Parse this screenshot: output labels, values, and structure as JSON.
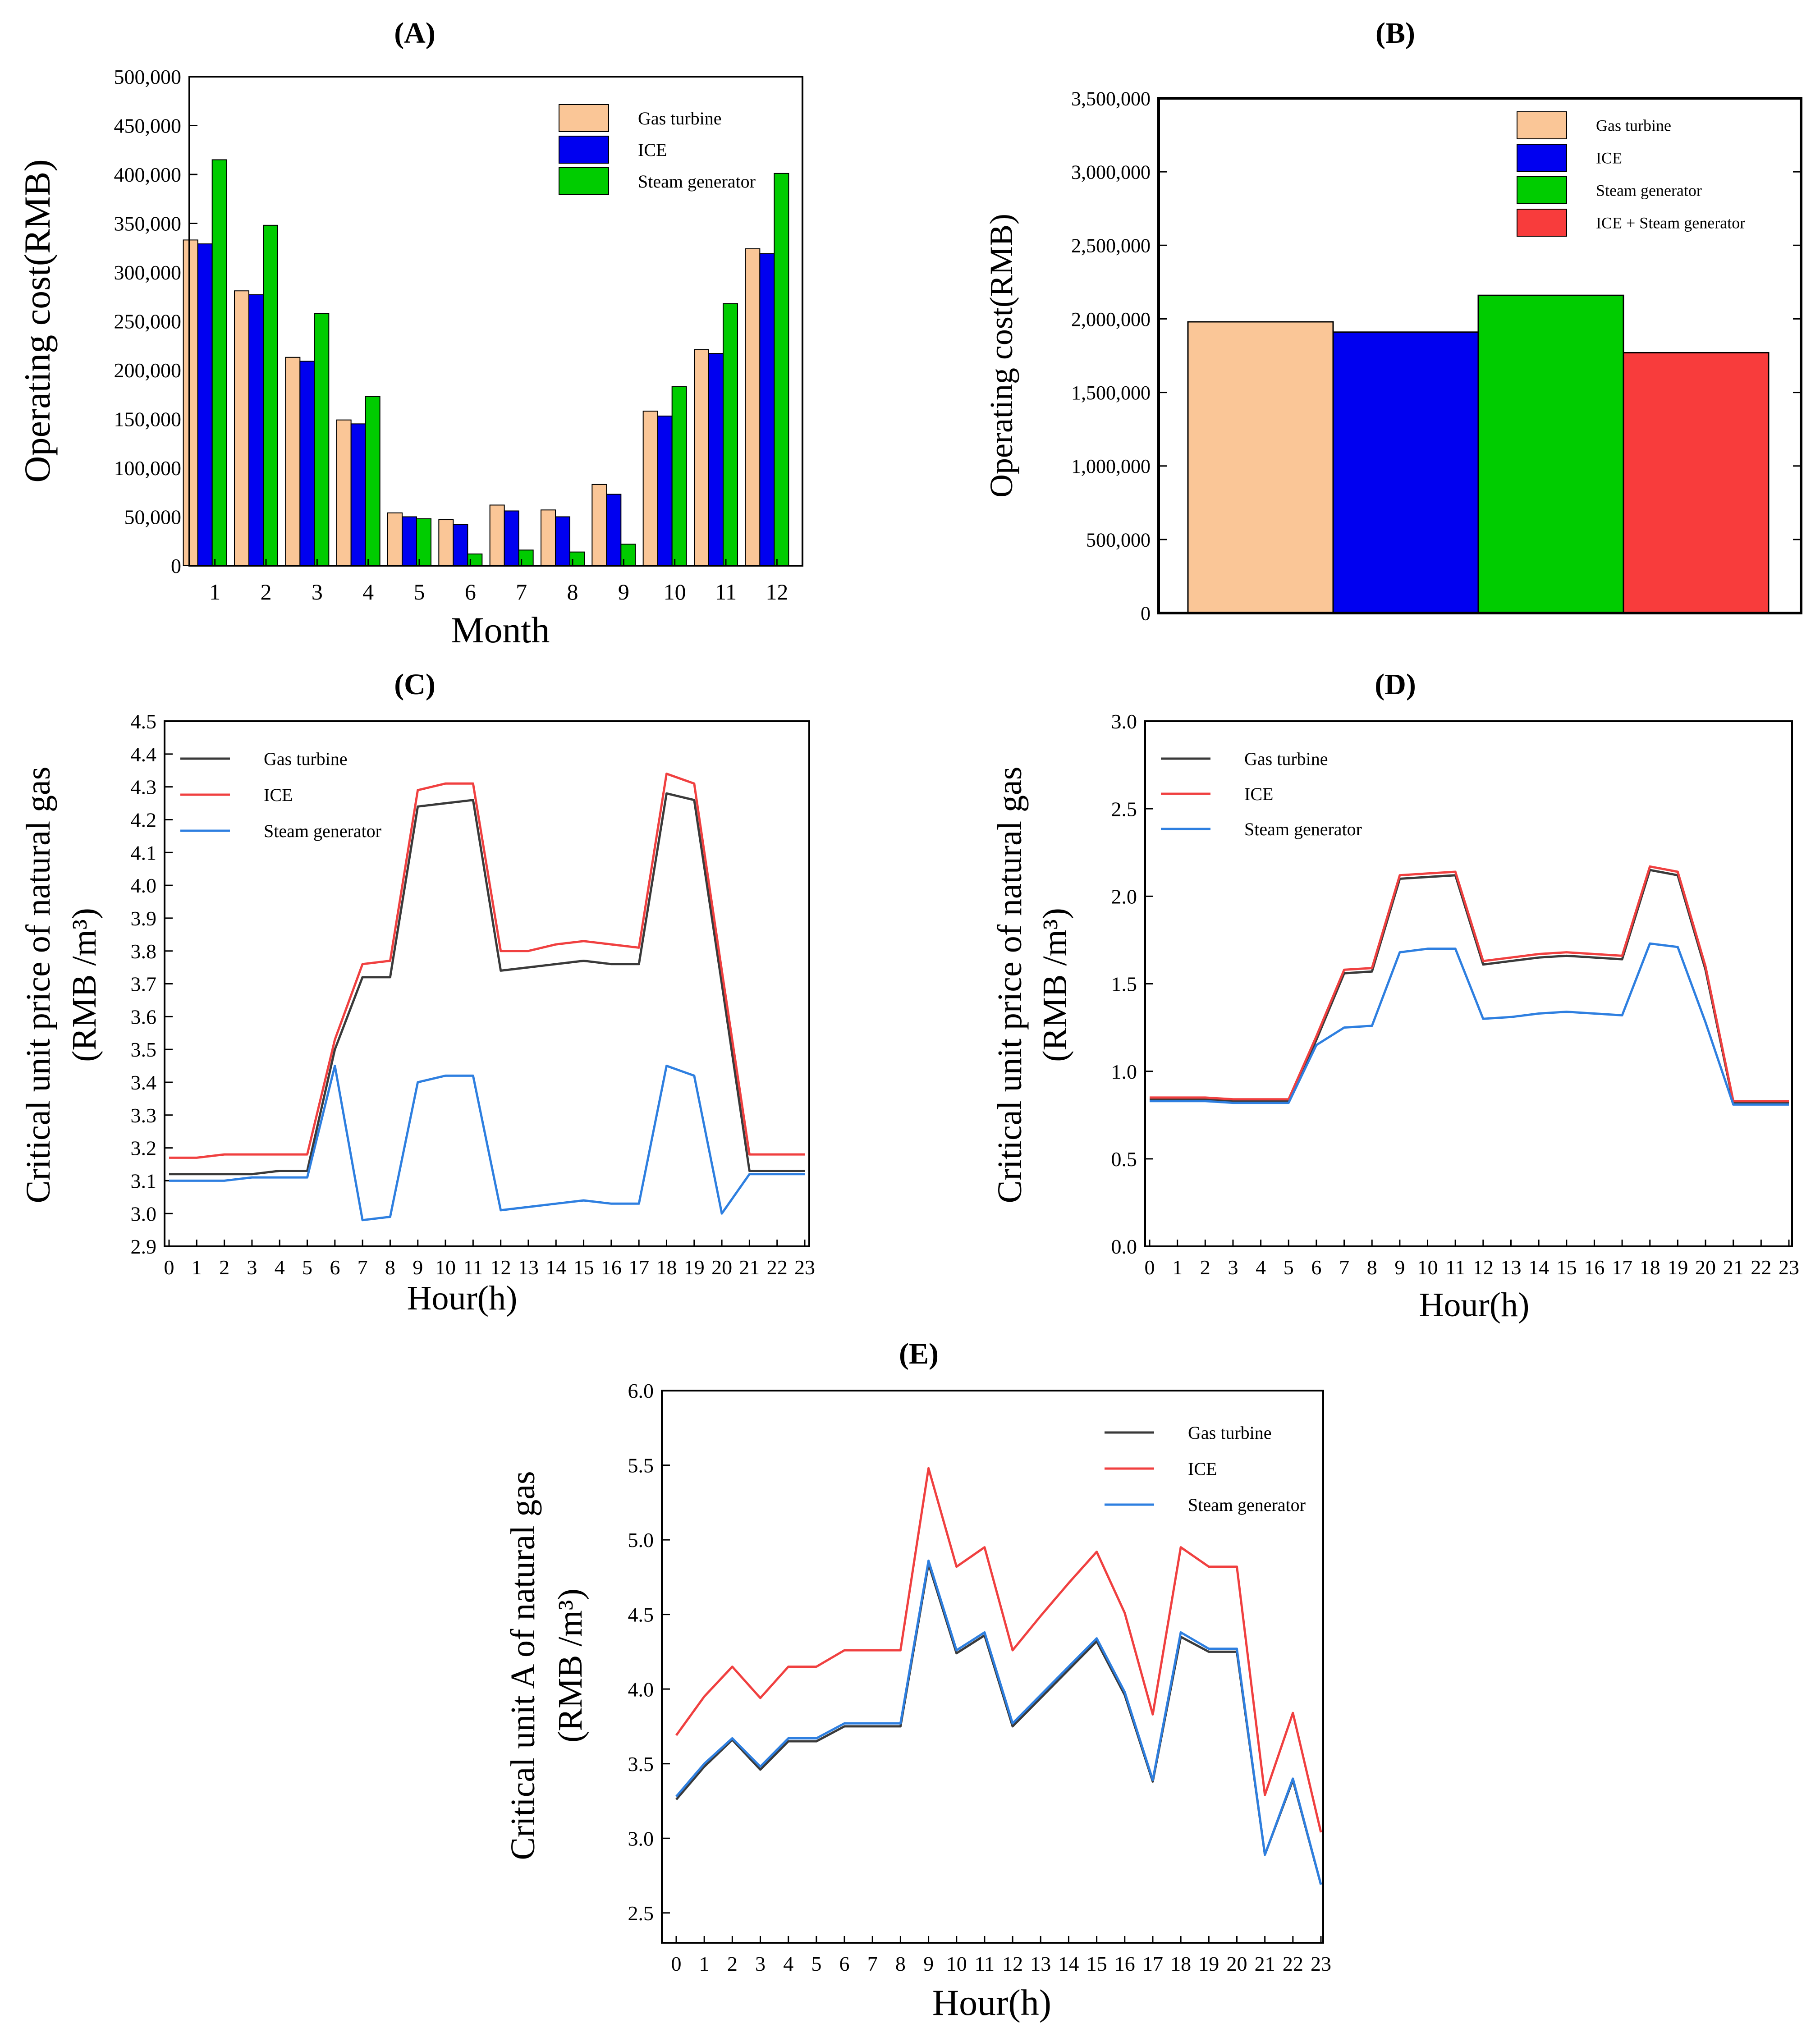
{
  "colors": {
    "gas_bar": "#FAC697",
    "ice_bar": "#0000F0",
    "steam_bar": "#00CC00",
    "combo_bar": "#F83C3C",
    "gas_line": "#3A3A3A",
    "ice_line": "#F04040",
    "steam_line": "#2E7FE0"
  },
  "chart_data": [
    {
      "panel": "(A)",
      "type": "bar",
      "xlabel": "Month",
      "ylabel": "Operating cost(RMB)",
      "ylim": [
        0,
        500000
      ],
      "yticks": [
        "0",
        "50,000",
        "100,000",
        "150,000",
        "200,000",
        "250,000",
        "300,000",
        "350,000",
        "400,000",
        "450,000",
        "500,000"
      ],
      "categories": [
        "1",
        "2",
        "3",
        "4",
        "5",
        "6",
        "7",
        "8",
        "9",
        "10",
        "11",
        "12"
      ],
      "legend_position": "top-right",
      "series": [
        {
          "name": "Gas turbine",
          "values": [
            333000,
            281000,
            213000,
            149000,
            54000,
            47000,
            62000,
            57000,
            83000,
            158000,
            221000,
            324000
          ]
        },
        {
          "name": "ICE",
          "values": [
            329000,
            277000,
            209000,
            145000,
            50000,
            42000,
            56000,
            50000,
            73000,
            153000,
            217000,
            319000
          ]
        },
        {
          "name": "Steam generator",
          "values": [
            415000,
            348000,
            258000,
            173000,
            48000,
            12000,
            16000,
            14000,
            22000,
            183000,
            268000,
            401000
          ]
        }
      ]
    },
    {
      "panel": "(B)",
      "type": "bar",
      "ylabel": "Operating cost(RMB)",
      "ylim": [
        0,
        3500000
      ],
      "yticks": [
        "0",
        "500,000",
        "1,000,000",
        "1,500,000",
        "2,000,000",
        "2,500,000",
        "3,000,000",
        "3,500,000"
      ],
      "legend_position": "top-right",
      "series": [
        {
          "name": "Gas turbine",
          "values": [
            1980000
          ]
        },
        {
          "name": "ICE",
          "values": [
            1910000
          ]
        },
        {
          "name": "Steam generator",
          "values": [
            2160000
          ]
        },
        {
          "name": "ICE + Steam generator",
          "values": [
            1770000
          ]
        }
      ]
    },
    {
      "panel": "(C)",
      "type": "line",
      "xlabel": "Hour(h)",
      "ylabel": [
        "Critical unit price of natural gas",
        "(RMB /m³)"
      ],
      "ylim": [
        2.9,
        4.5
      ],
      "yticks": [
        "2.9",
        "3.0",
        "3.1",
        "3.2",
        "3.3",
        "3.4",
        "3.5",
        "3.6",
        "3.7",
        "3.8",
        "3.9",
        "4.0",
        "4.1",
        "4.2",
        "4.3",
        "4.4",
        "4.5"
      ],
      "x": [
        0,
        1,
        2,
        3,
        4,
        5,
        6,
        7,
        8,
        9,
        10,
        11,
        12,
        13,
        14,
        15,
        16,
        17,
        18,
        19,
        20,
        21,
        22,
        23
      ],
      "legend_position": "top-left",
      "series": [
        {
          "name": "Gas turbine",
          "values": [
            3.12,
            3.12,
            3.12,
            3.12,
            3.13,
            3.13,
            3.5,
            3.72,
            3.72,
            4.24,
            4.25,
            4.26,
            3.74,
            3.75,
            3.76,
            3.77,
            3.76,
            3.76,
            4.28,
            4.26,
            3.7,
            3.13,
            3.13,
            3.13
          ]
        },
        {
          "name": "ICE",
          "values": [
            3.17,
            3.17,
            3.18,
            3.18,
            3.18,
            3.18,
            3.53,
            3.76,
            3.77,
            4.29,
            4.31,
            4.31,
            3.8,
            3.8,
            3.82,
            3.83,
            3.82,
            3.81,
            4.34,
            4.31,
            3.74,
            3.18,
            3.18,
            3.18
          ]
        },
        {
          "name": "Steam generator",
          "values": [
            3.1,
            3.1,
            3.1,
            3.11,
            3.11,
            3.11,
            3.45,
            2.98,
            2.99,
            3.4,
            3.42,
            3.42,
            3.01,
            3.02,
            3.03,
            3.04,
            3.03,
            3.03,
            3.45,
            3.42,
            3.0,
            3.12,
            3.12,
            3.12
          ]
        }
      ]
    },
    {
      "panel": "(D)",
      "type": "line",
      "xlabel": "Hour(h)",
      "ylabel": [
        "Critical unit price of natural gas",
        "(RMB /m³)"
      ],
      "ylim": [
        0.0,
        3.0
      ],
      "yticks": [
        "0.0",
        "0.5",
        "1.0",
        "1.5",
        "2.0",
        "2.5",
        "3.0"
      ],
      "x": [
        0,
        1,
        2,
        3,
        4,
        5,
        6,
        7,
        8,
        9,
        10,
        11,
        12,
        13,
        14,
        15,
        16,
        17,
        18,
        19,
        20,
        21,
        22,
        23
      ],
      "legend_position": "top-left",
      "series": [
        {
          "name": "Gas turbine",
          "values": [
            0.84,
            0.84,
            0.84,
            0.83,
            0.83,
            0.83,
            1.18,
            1.56,
            1.57,
            2.1,
            2.11,
            2.12,
            1.61,
            1.63,
            1.65,
            1.66,
            1.65,
            1.64,
            2.15,
            2.12,
            1.58,
            0.82,
            0.82,
            0.82
          ]
        },
        {
          "name": "ICE",
          "values": [
            0.85,
            0.85,
            0.85,
            0.84,
            0.84,
            0.84,
            1.2,
            1.58,
            1.59,
            2.12,
            2.13,
            2.14,
            1.63,
            1.65,
            1.67,
            1.68,
            1.67,
            1.66,
            2.17,
            2.14,
            1.6,
            0.83,
            0.83,
            0.83
          ]
        },
        {
          "name": "Steam generator",
          "values": [
            0.83,
            0.83,
            0.83,
            0.82,
            0.82,
            0.82,
            1.15,
            1.25,
            1.26,
            1.68,
            1.7,
            1.7,
            1.3,
            1.31,
            1.33,
            1.34,
            1.33,
            1.32,
            1.73,
            1.71,
            1.28,
            0.81,
            0.81,
            0.81
          ]
        }
      ]
    },
    {
      "panel": "(E)",
      "type": "line",
      "xlabel": "Hour(h)",
      "ylabel": [
        "Critical unit A of natural gas",
        "(RMB /m³)"
      ],
      "ylim": [
        2.3,
        6.0
      ],
      "yticks": [
        "2.5",
        "3.0",
        "3.5",
        "4.0",
        "4.5",
        "5.0",
        "5.5",
        "6.0"
      ],
      "x": [
        0,
        1,
        2,
        3,
        4,
        5,
        6,
        7,
        8,
        9,
        10,
        11,
        12,
        13,
        14,
        15,
        16,
        17,
        18,
        19,
        20,
        21,
        22,
        23
      ],
      "legend_position": "top-right",
      "series": [
        {
          "name": "Gas turbine",
          "values": [
            3.26,
            3.48,
            3.66,
            3.46,
            3.65,
            3.65,
            3.75,
            3.75,
            3.75,
            4.84,
            4.24,
            4.36,
            3.75,
            3.94,
            4.13,
            4.32,
            3.96,
            3.38,
            4.35,
            4.25,
            4.25,
            2.89,
            3.39,
            2.69
          ]
        },
        {
          "name": "ICE",
          "values": [
            3.69,
            3.95,
            4.15,
            3.94,
            4.15,
            4.15,
            4.26,
            4.26,
            4.26,
            5.48,
            4.82,
            4.95,
            4.26,
            4.49,
            4.71,
            4.92,
            4.51,
            3.83,
            4.95,
            4.82,
            4.82,
            3.29,
            3.84,
            3.04
          ]
        },
        {
          "name": "Steam generator",
          "values": [
            3.28,
            3.5,
            3.67,
            3.48,
            3.67,
            3.67,
            3.77,
            3.77,
            3.77,
            4.86,
            4.26,
            4.38,
            3.77,
            3.96,
            4.15,
            4.34,
            3.98,
            3.39,
            4.38,
            4.27,
            4.27,
            2.89,
            3.4,
            2.69
          ]
        }
      ]
    }
  ]
}
